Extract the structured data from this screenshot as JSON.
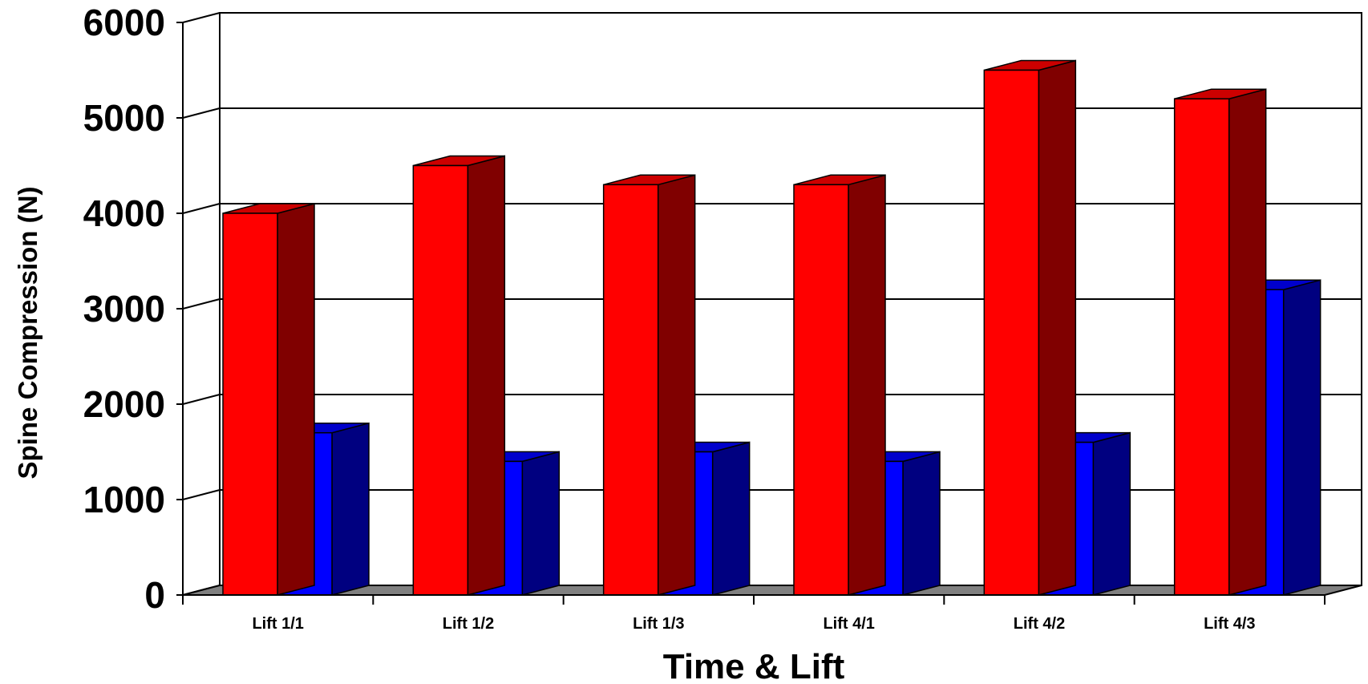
{
  "chart_data": {
    "type": "bar",
    "style": "3d-clustered-column",
    "title": "",
    "xlabel": "Time & Lift",
    "ylabel": "Spine Compression (N)",
    "ylim": [
      0,
      6000
    ],
    "yticks": [
      0,
      1000,
      2000,
      3000,
      4000,
      5000,
      6000
    ],
    "grid": true,
    "legend": "none",
    "categories": [
      "Lift 1/1",
      "Lift 1/2",
      "Lift 1/3",
      "Lift 4/1",
      "Lift 4/2",
      "Lift 4/3"
    ],
    "series": [
      {
        "values": [
          4000,
          4500,
          4300,
          4300,
          5500,
          5200
        ],
        "color": "#ff0000",
        "side_color": "#800000",
        "top_color": "#cc0000"
      },
      {
        "values": [
          1700,
          1400,
          1500,
          1400,
          1600,
          3200
        ],
        "color": "#0000ff",
        "side_color": "#000080",
        "top_color": "#0000cc"
      }
    ],
    "floor_color": "#808080"
  }
}
